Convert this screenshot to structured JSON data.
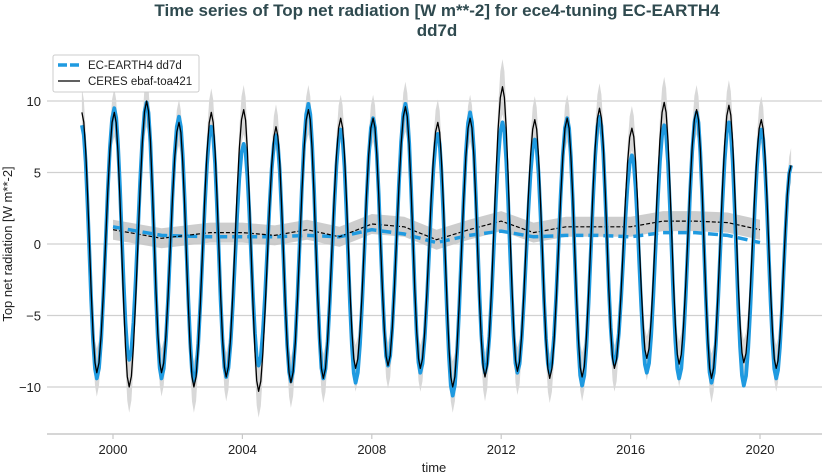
{
  "chart_data": {
    "type": "line",
    "title_line1": "Time series of Top net radiation [W m**-2] for ece4-tuning EC-EARTH4",
    "title_line2": "dd7d",
    "xlabel": "time",
    "ylabel": "Top net radiation [W m**-2]",
    "xlim": [
      1998,
      2022
    ],
    "ylim": [
      -13.3,
      12.9
    ],
    "xticks": [
      "2000",
      "2004",
      "2008",
      "2012",
      "2016",
      "2020"
    ],
    "yticks": [
      "10",
      "5",
      "0",
      "−5",
      "−10"
    ],
    "grid": "horizontal",
    "legend_position": "top-left",
    "colors": {
      "model": "#1f9ae0",
      "obs": "#000000",
      "band": "#d8d8d8"
    },
    "years": [
      1999,
      2000,
      2001,
      2002,
      2003,
      2004,
      2005,
      2006,
      2007,
      2008,
      2009,
      2010,
      2011,
      2012,
      2013,
      2014,
      2015,
      2016,
      2017,
      2018,
      2019,
      2020
    ],
    "series": [
      {
        "name": "EC-EARTH4 dd7d",
        "style": "thick-blue",
        "january_peaks": [
          8.3,
          9.5,
          9.9,
          8.9,
          8.2,
          7.0,
          7.6,
          9.8,
          8.0,
          8.8,
          9.8,
          7.7,
          9.2,
          8.5,
          7.3,
          8.8,
          8.9,
          6.2,
          8.3,
          9.2,
          8.5,
          8.0
        ],
        "midyear_troughs": [
          -9.4,
          -8.1,
          -9.4,
          -9.6,
          -9.3,
          -8.5,
          -9.6,
          -9.4,
          -9.7,
          -8.5,
          -9.0,
          -10.6,
          -9.0,
          -9.0,
          -9.0,
          -9.9,
          -8.4,
          -9.0,
          -9.4,
          -9.7,
          -9.9,
          -9.4
        ],
        "end_value_2021_jan": 5.5,
        "running_mean": {
          "x": [
            2000,
            2001.5,
            2003,
            2004,
            2005,
            2006,
            2007,
            2008,
            2009,
            2010,
            2011,
            2012,
            2013,
            2014,
            2015,
            2016,
            2017,
            2018,
            2019,
            2020
          ],
          "y": [
            1.2,
            0.6,
            0.5,
            0.5,
            0.5,
            0.6,
            0.5,
            1.0,
            0.7,
            0.1,
            0.6,
            0.9,
            0.5,
            0.6,
            0.6,
            0.5,
            0.8,
            0.8,
            0.6,
            0.1
          ]
        }
      },
      {
        "name": "CERES ebaf-toa421",
        "style": "thin-black",
        "january_peaks": [
          9.2,
          9.2,
          10.0,
          8.5,
          9.2,
          9.4,
          8.2,
          9.4,
          8.8,
          8.8,
          9.6,
          8.5,
          8.8,
          11.0,
          8.7,
          8.8,
          9.5,
          8.1,
          9.9,
          9.4,
          9.7,
          8.7
        ],
        "midyear_troughs": [
          -9.0,
          -10.0,
          -9.0,
          -10.0,
          -9.3,
          -10.3,
          -9.7,
          -9.4,
          -8.7,
          -8.5,
          -8.7,
          -10.0,
          -9.3,
          -8.9,
          -9.4,
          -9.3,
          -8.7,
          -8.0,
          -8.4,
          -9.4,
          -8.3,
          -8.7
        ],
        "end_value_2021_jan": 5.5,
        "running_mean": {
          "x": [
            2000,
            2001.5,
            2003,
            2004,
            2005,
            2006,
            2007,
            2008,
            2009,
            2010,
            2011,
            2012,
            2013,
            2014,
            2015,
            2016,
            2017,
            2018,
            2019,
            2020
          ],
          "y": [
            1.0,
            0.4,
            0.8,
            0.8,
            0.6,
            1.0,
            0.5,
            1.4,
            1.2,
            0.3,
            1.0,
            1.6,
            0.8,
            1.2,
            1.2,
            1.2,
            1.6,
            1.6,
            1.5,
            1.0
          ]
        }
      }
    ]
  }
}
